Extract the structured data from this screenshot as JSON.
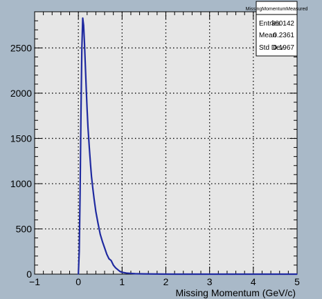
{
  "chart_data": {
    "type": "line",
    "title": "",
    "xlabel": "Missing Momentum (GeV/c)",
    "ylabel": "",
    "xlim": [
      -1,
      5
    ],
    "ylim": [
      0,
      2900
    ],
    "grid": true,
    "x_ticks": [
      -1,
      0,
      1,
      2,
      3,
      4,
      5
    ],
    "y_ticks": [
      0,
      500,
      1000,
      1500,
      2000,
      2500
    ],
    "series": [
      {
        "x": [
          0.0,
          0.02,
          0.04,
          0.06,
          0.08,
          0.1,
          0.12,
          0.14,
          0.16,
          0.18,
          0.2,
          0.22,
          0.25,
          0.28,
          0.3,
          0.33,
          0.36,
          0.4,
          0.45,
          0.5,
          0.55,
          0.6,
          0.65,
          0.7,
          0.75,
          0.8,
          0.85,
          0.9,
          0.95,
          1.0,
          1.1,
          1.2,
          1.3,
          1.5,
          1.7,
          1.9,
          2.2,
          2.5,
          3.0,
          4.0,
          5.0
        ],
        "y": [
          0,
          250,
          900,
          1800,
          2500,
          2830,
          2750,
          2550,
          2300,
          2050,
          1820,
          1620,
          1400,
          1200,
          1080,
          950,
          830,
          690,
          560,
          440,
          360,
          290,
          220,
          170,
          150,
          100,
          70,
          50,
          30,
          20,
          12,
          8,
          5,
          3,
          2,
          1,
          0,
          0,
          0,
          0,
          0
        ],
        "color": "#1f2aa0"
      }
    ]
  },
  "stats_box": {
    "name": "MissingMomentumMeasured",
    "rows": [
      {
        "label": "Entries",
        "value": "360142"
      },
      {
        "label": "Mean",
        "value": "0.2361"
      },
      {
        "label": "Std Dev",
        "value": "0.1967"
      }
    ]
  },
  "colors": {
    "canvas": "#a9b9c8",
    "frame": "#e6e6e6",
    "line": "#1f2aa0",
    "stats_bg": "#ffffff"
  }
}
